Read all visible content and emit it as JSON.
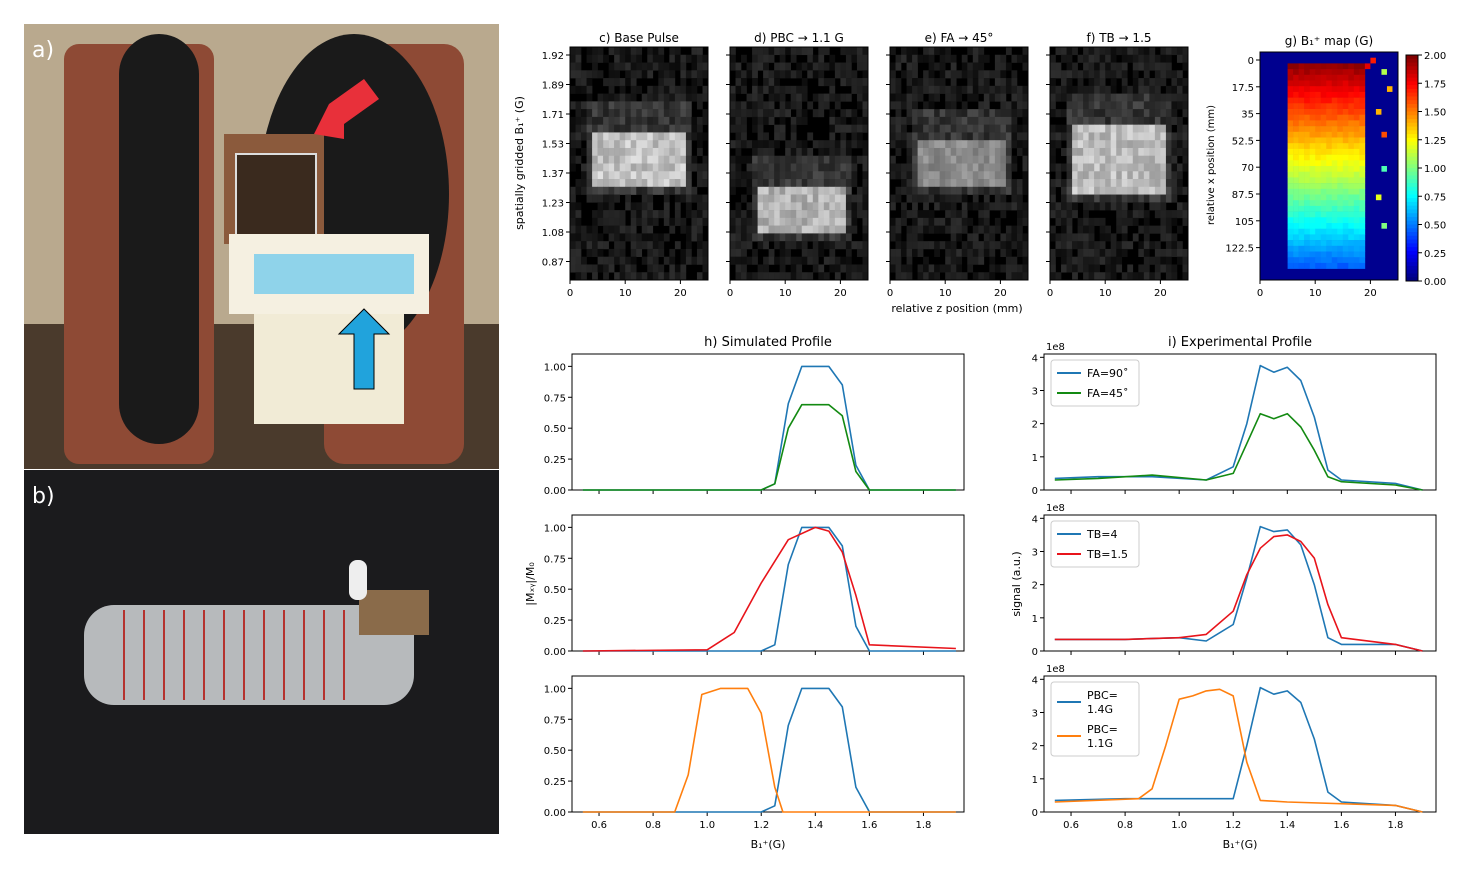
{
  "panel_labels": {
    "a": "a)",
    "b": "b)"
  },
  "colors": {
    "blue": "#1f77b4",
    "green": "#138a12",
    "red": "#e8141b",
    "orange": "#ff7f0e"
  },
  "icons": [
    "red-arrow-icon",
    "blue-arrow-icon"
  ],
  "heatmaps": {
    "titles": [
      "c) Base Pulse",
      "d) PBC → 1.1 G",
      "e) FA → 45°",
      "f) TB → 1.5"
    ],
    "ylabel": "spatially gridded B₁⁺ (G)",
    "xlabel": "relative z position (mm)",
    "yticks": [
      "1.92",
      "1.89",
      "1.71",
      "1.53",
      "1.37",
      "1.23",
      "1.08",
      "0.87"
    ],
    "xticks": [
      "0",
      "10",
      "20"
    ]
  },
  "b1map": {
    "title": "g) B₁⁺ map (G)",
    "ylabel": "relative x position (mm)",
    "yticks": [
      "0",
      "17.5",
      "35",
      "52.5",
      "70",
      "87.5",
      "105",
      "122.5"
    ],
    "xticks": [
      "0",
      "10",
      "20"
    ],
    "colorbar_ticks": [
      "2.00",
      "1.75",
      "1.50",
      "1.25",
      "1.00",
      "0.75",
      "0.50",
      "0.25",
      "0.00"
    ],
    "colormap": "jet"
  },
  "profiles": {
    "left_title": "h) Simulated Profile",
    "right_title": "i) Experimental Profile",
    "left_ylabel": "|Mₓᵧ|/M₀",
    "right_ylabel": "signal (a.u.)",
    "xlabel": "B₁⁺(G)",
    "multiplier": "1e8",
    "sim_yticks": [
      "0.00",
      "0.25",
      "0.50",
      "0.75",
      "1.00"
    ],
    "exp_yticks": [
      "0",
      "1",
      "2",
      "3",
      "4"
    ],
    "xticks": [
      "0.6",
      "0.8",
      "1.0",
      "1.2",
      "1.4",
      "1.6",
      "1.8"
    ]
  },
  "chart_data": [
    {
      "type": "heatmap",
      "title": "c) Base Pulse",
      "xlabel": "",
      "ylabel": "spatially gridded B₁⁺ (G)",
      "bright_region": {
        "z_mm": [
          4,
          20
        ],
        "b1_G": [
          1.27,
          1.51
        ]
      }
    },
    {
      "type": "heatmap",
      "title": "d) PBC → 1.1 G",
      "bright_region": {
        "z_mm": [
          5,
          20
        ],
        "b1_G": [
          1.02,
          1.21
        ]
      }
    },
    {
      "type": "heatmap",
      "title": "e) FA → 45°",
      "bright_region": {
        "z_mm": [
          5,
          20
        ],
        "b1_G": [
          1.28,
          1.49
        ]
      }
    },
    {
      "type": "heatmap",
      "title": "f) TB → 1.5",
      "bright_region": {
        "z_mm": [
          4,
          20
        ],
        "b1_G": [
          1.24,
          1.55
        ]
      }
    },
    {
      "type": "heatmap",
      "title": "g) B₁⁺ map (G)",
      "ylabel": "relative x position (mm)",
      "colorbar_range": [
        0,
        2.0
      ],
      "top_B1_G": 1.95,
      "bottom_B1_G": 0.45
    },
    {
      "type": "line",
      "title": "h) Simulated Profile",
      "ylim": [
        0,
        1.1
      ],
      "xlim": [
        0.5,
        1.95
      ],
      "series": [
        {
          "name": "",
          "color": "#1f77b4",
          "x": [
            0.54,
            1.2,
            1.25,
            1.3,
            1.35,
            1.45,
            1.5,
            1.55,
            1.6,
            1.92
          ],
          "y": [
            0,
            0,
            0.05,
            0.7,
            1.0,
            1.0,
            0.85,
            0.2,
            0,
            0
          ]
        },
        {
          "name": "",
          "color": "#138a12",
          "x": [
            0.54,
            1.2,
            1.25,
            1.3,
            1.35,
            1.45,
            1.5,
            1.55,
            1.6,
            1.92
          ],
          "y": [
            0,
            0,
            0.05,
            0.5,
            0.69,
            0.69,
            0.6,
            0.15,
            0,
            0
          ]
        }
      ]
    },
    {
      "type": "line",
      "ylim": [
        0,
        1.1
      ],
      "series": [
        {
          "name": "",
          "color": "#1f77b4",
          "x": [
            0.54,
            1.2,
            1.25,
            1.3,
            1.35,
            1.45,
            1.5,
            1.55,
            1.6,
            1.92
          ],
          "y": [
            0,
            0,
            0.05,
            0.7,
            1.0,
            1.0,
            0.85,
            0.2,
            0,
            0
          ]
        },
        {
          "name": "",
          "color": "#e8141b",
          "x": [
            0.54,
            1.0,
            1.1,
            1.2,
            1.3,
            1.4,
            1.45,
            1.5,
            1.55,
            1.6,
            1.92
          ],
          "y": [
            0,
            0.01,
            0.15,
            0.55,
            0.9,
            1.0,
            0.97,
            0.8,
            0.45,
            0.05,
            0.02
          ]
        }
      ]
    },
    {
      "type": "line",
      "ylim": [
        0,
        1.1
      ],
      "series": [
        {
          "name": "",
          "color": "#1f77b4",
          "x": [
            0.54,
            1.2,
            1.25,
            1.3,
            1.35,
            1.45,
            1.5,
            1.55,
            1.6,
            1.92
          ],
          "y": [
            0,
            0,
            0.05,
            0.7,
            1.0,
            1.0,
            0.85,
            0.2,
            0,
            0
          ]
        },
        {
          "name": "",
          "color": "#ff7f0e",
          "x": [
            0.54,
            0.88,
            0.93,
            0.98,
            1.05,
            1.15,
            1.2,
            1.25,
            1.28,
            1.92
          ],
          "y": [
            0,
            0,
            0.3,
            0.95,
            1.0,
            1.0,
            0.8,
            0.2,
            0,
            0
          ]
        }
      ]
    },
    {
      "type": "line",
      "title": "i) Experimental Profile",
      "ylim": [
        0,
        4.1
      ],
      "series": [
        {
          "name": "FA=90˚",
          "color": "#1f77b4",
          "x": [
            0.54,
            0.7,
            0.9,
            1.1,
            1.2,
            1.25,
            1.3,
            1.35,
            1.4,
            1.45,
            1.5,
            1.55,
            1.6,
            1.8,
            1.9
          ],
          "y": [
            0.35,
            0.4,
            0.4,
            0.3,
            0.7,
            2.0,
            3.75,
            3.55,
            3.7,
            3.3,
            2.2,
            0.6,
            0.3,
            0.2,
            0.0
          ]
        },
        {
          "name": "FA=45˚",
          "color": "#138a12",
          "x": [
            0.54,
            0.7,
            0.9,
            1.1,
            1.2,
            1.25,
            1.3,
            1.35,
            1.4,
            1.45,
            1.5,
            1.55,
            1.6,
            1.8,
            1.9
          ],
          "y": [
            0.3,
            0.35,
            0.45,
            0.3,
            0.5,
            1.4,
            2.3,
            2.15,
            2.3,
            1.9,
            1.2,
            0.4,
            0.25,
            0.15,
            0.0
          ]
        }
      ]
    },
    {
      "type": "line",
      "ylim": [
        0,
        4.1
      ],
      "series": [
        {
          "name": "TB=4",
          "color": "#1f77b4",
          "x": [
            0.54,
            0.8,
            1.0,
            1.1,
            1.2,
            1.25,
            1.3,
            1.35,
            1.4,
            1.45,
            1.5,
            1.55,
            1.6,
            1.8,
            1.9
          ],
          "y": [
            0.35,
            0.35,
            0.4,
            0.3,
            0.8,
            2.2,
            3.75,
            3.6,
            3.65,
            3.2,
            2.0,
            0.4,
            0.2,
            0.2,
            0.0
          ]
        },
        {
          "name": "TB=1.5",
          "color": "#e8141b",
          "x": [
            0.54,
            0.8,
            1.0,
            1.1,
            1.2,
            1.25,
            1.3,
            1.35,
            1.4,
            1.45,
            1.5,
            1.55,
            1.6,
            1.8,
            1.9
          ],
          "y": [
            0.35,
            0.35,
            0.4,
            0.5,
            1.2,
            2.3,
            3.1,
            3.45,
            3.5,
            3.3,
            2.8,
            1.4,
            0.4,
            0.2,
            0.0
          ]
        }
      ]
    },
    {
      "type": "line",
      "ylim": [
        0,
        4.1
      ],
      "series": [
        {
          "name": "PBC= 1.4G",
          "color": "#1f77b4",
          "x": [
            0.54,
            0.8,
            1.0,
            1.2,
            1.25,
            1.3,
            1.35,
            1.4,
            1.45,
            1.5,
            1.55,
            1.6,
            1.8,
            1.9
          ],
          "y": [
            0.35,
            0.4,
            0.4,
            0.4,
            2.0,
            3.75,
            3.55,
            3.65,
            3.3,
            2.2,
            0.6,
            0.3,
            0.2,
            0.0
          ]
        },
        {
          "name": "PBC= 1.1G",
          "color": "#ff7f0e",
          "x": [
            0.54,
            0.85,
            0.9,
            0.95,
            1.0,
            1.05,
            1.1,
            1.15,
            1.2,
            1.25,
            1.3,
            1.4,
            1.8,
            1.9
          ],
          "y": [
            0.3,
            0.4,
            0.7,
            2.0,
            3.4,
            3.5,
            3.65,
            3.7,
            3.5,
            1.5,
            0.35,
            0.3,
            0.2,
            0.0
          ]
        }
      ]
    }
  ]
}
